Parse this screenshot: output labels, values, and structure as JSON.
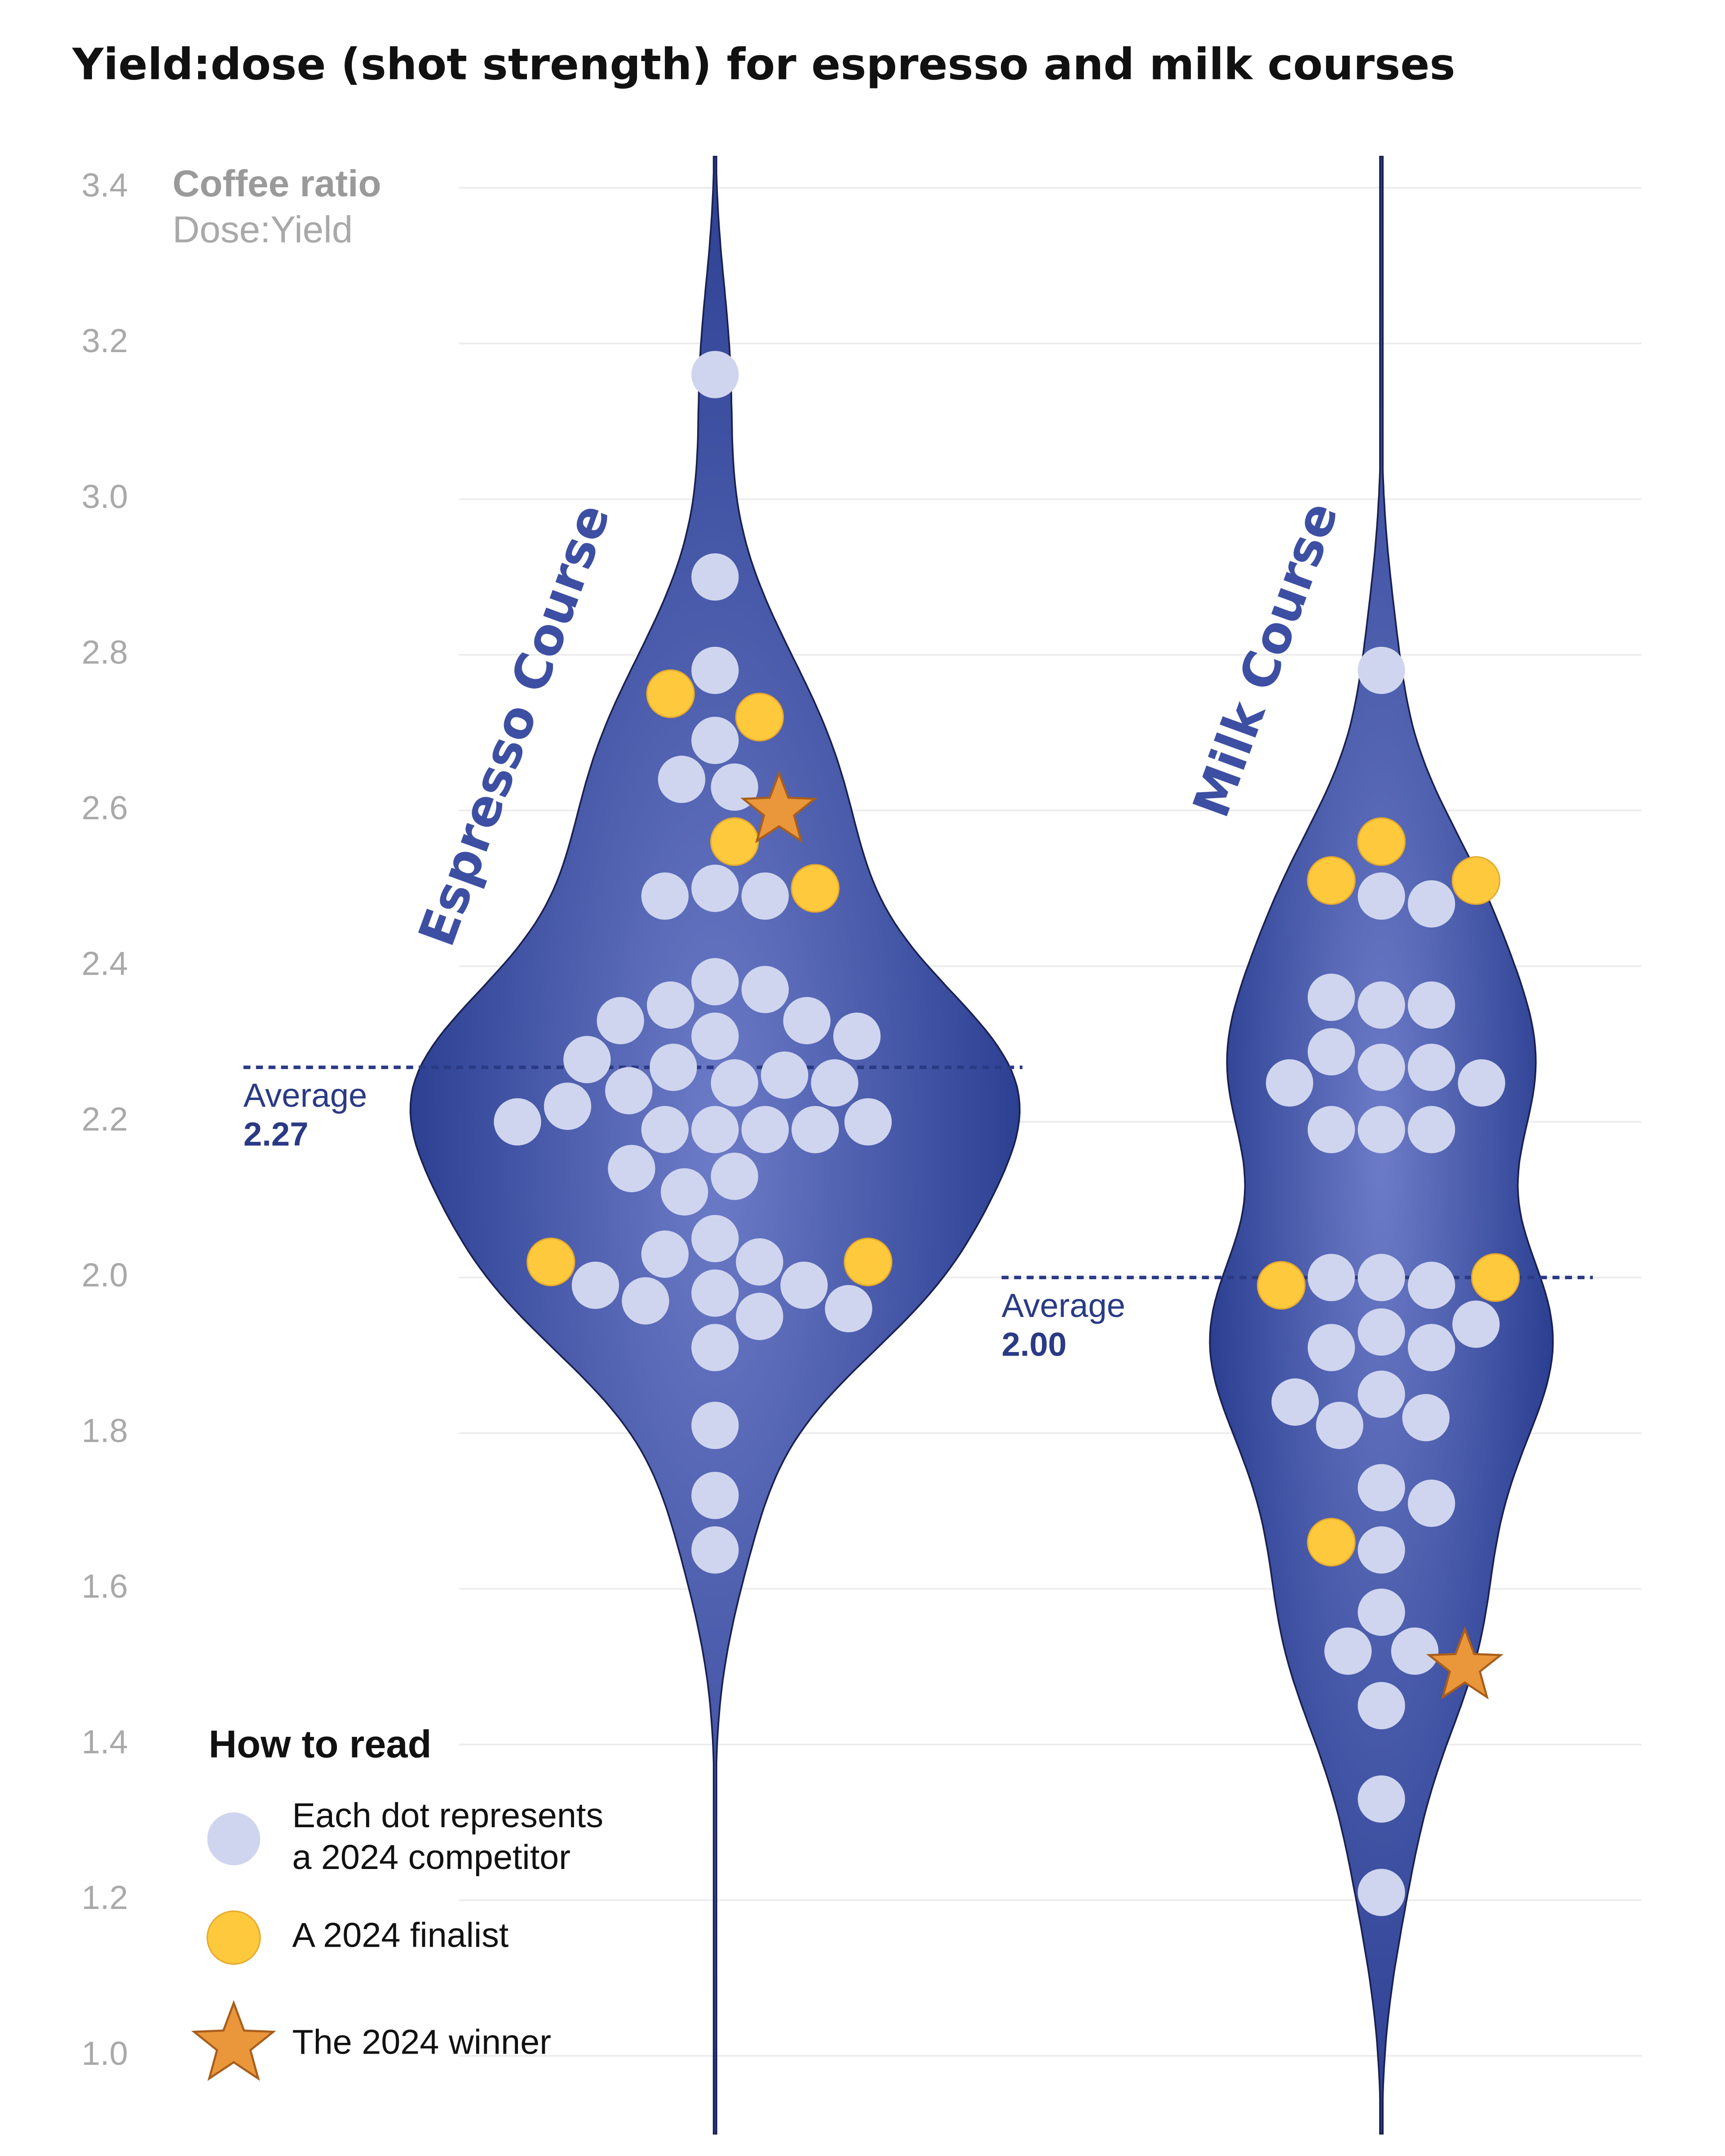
{
  "chart_data": {
    "type": "beeswarm-violin",
    "title": "Yield:dose (shot strength) for espresso and milk courses",
    "y_label": "Coffee ratio",
    "y_sublabel": "Dose:Yield",
    "ylim": [
      0.9,
      3.44
    ],
    "yticks": [
      {
        "value": 1,
        "label": "1.0"
      },
      1.2,
      1.4,
      1.6,
      1.8,
      {
        "value": 2,
        "label": "2.0"
      },
      2.2,
      2.4,
      2.6,
      2.8,
      {
        "value": 3,
        "label": "3.0"
      },
      3.2,
      3.4
    ],
    "grid": true,
    "violin_color": "#2d3f95",
    "legend_title": "How to read",
    "dot_kinds": [
      {
        "label": [
          "Each dot represents",
          "a 2024 competitor"
        ],
        "color": "#cfd5ee",
        "shape": "circle"
      },
      {
        "label": [
          "A 2024 finalist"
        ],
        "color": "#fec93c",
        "shape": "circle"
      },
      {
        "label": [
          "The 2024 winner"
        ],
        "color": "#ea963b",
        "shape": "star"
      }
    ],
    "series": [
      {
        "name": "Espresso Course",
        "average_text": "Average",
        "average": 2.27,
        "average_label": "2.27",
        "values": [
          [
            3.16,
            2.9,
            2.78,
            2.69,
            2.63,
            2.64,
            2.5,
            2.49,
            2.49,
            2.38,
            2.37,
            2.35,
            2.33,
            2.31,
            2.33,
            2.31,
            2.25,
            2.27,
            2.28,
            2.26,
            2.25,
            2.24,
            2.22,
            2.19,
            2.19,
            2.2,
            2.2,
            2.19,
            2.19,
            2.13,
            2.14,
            2.11,
            2.05,
            2.02,
            2.03,
            1.98,
            1.97,
            1.99,
            1.99,
            1.96,
            1.95,
            1.91,
            1.81,
            1.72,
            1.65
          ],
          [
            2.72,
            2.75,
            2.56,
            2.5,
            2.02,
            2.02
          ],
          [
            2.6
          ]
        ]
      },
      {
        "name": "Milk Course",
        "average_text": "Average",
        "average": 2,
        "average_label": "2.00",
        "values": [
          [
            2.78,
            2.49,
            2.48,
            2.35,
            2.35,
            2.36,
            2.27,
            2.27,
            2.29,
            2.25,
            2.25,
            2.19,
            2.19,
            2.19,
            2,
            1.99,
            2,
            1.93,
            1.91,
            1.91,
            1.94,
            1.85,
            1.82,
            1.81,
            1.84,
            1.73,
            1.71,
            1.65,
            1.57,
            1.52,
            1.52,
            1.45,
            1.33,
            1.21
          ],
          [
            2.51,
            2.56,
            2.51,
            1.99,
            2,
            1.66
          ],
          [
            1.5
          ]
        ]
      }
    ]
  }
}
